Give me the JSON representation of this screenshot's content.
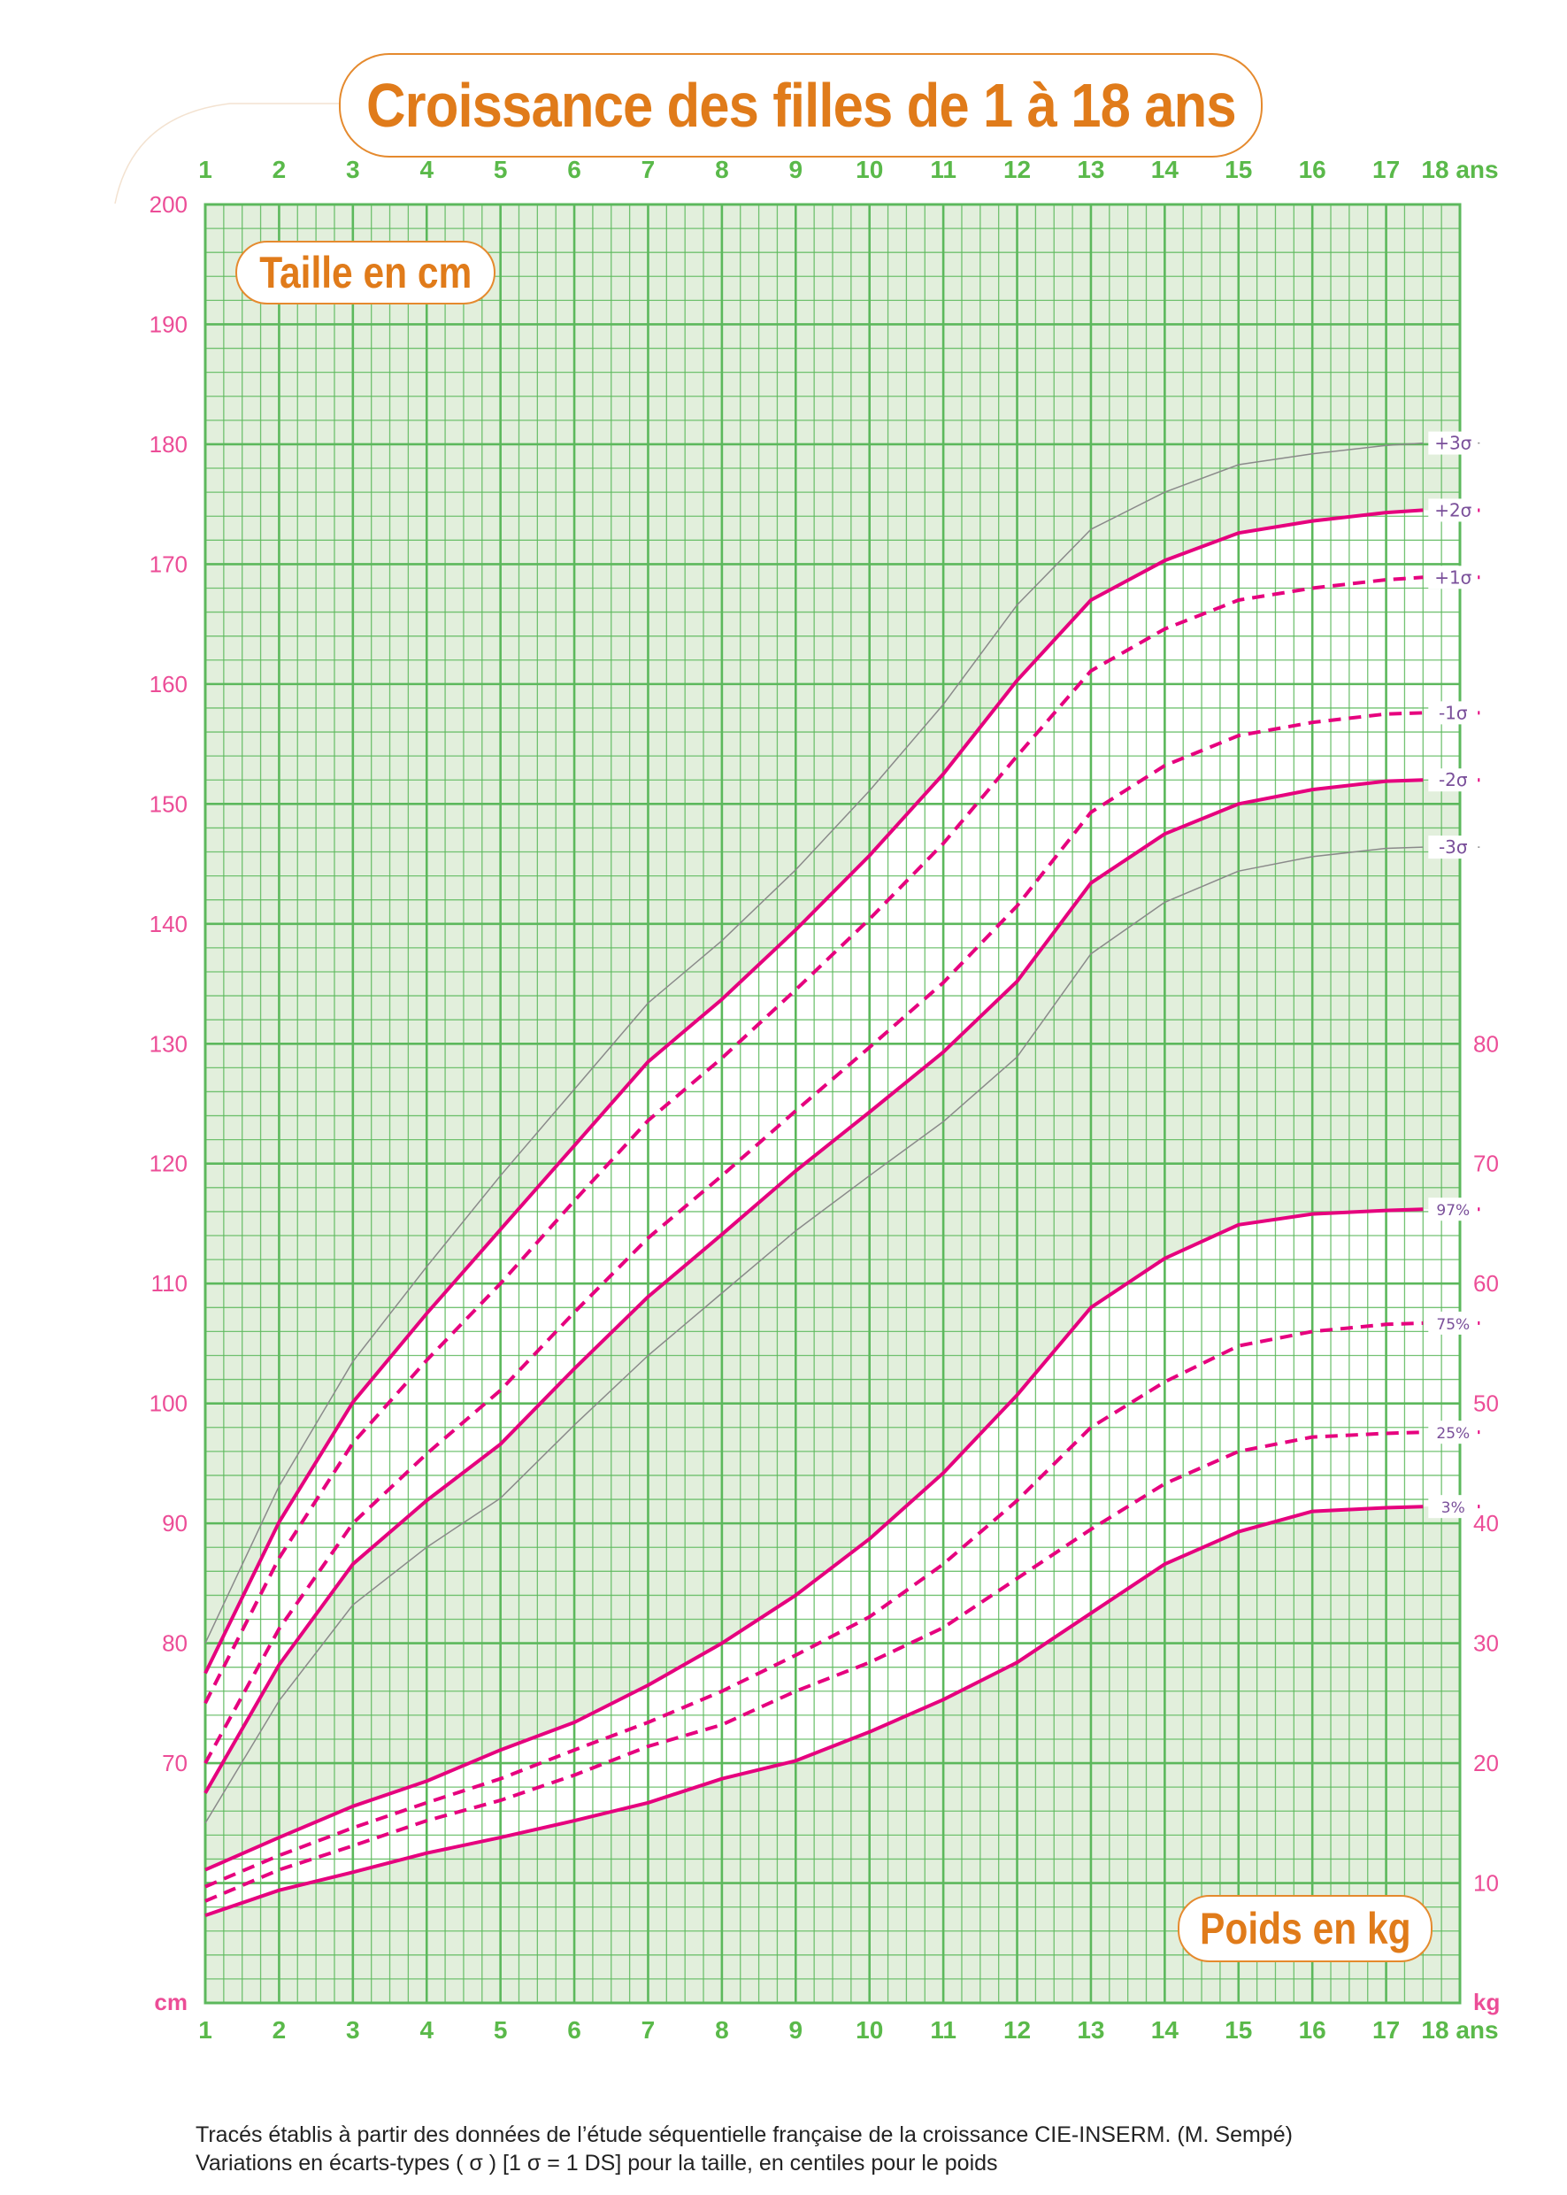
{
  "title": "Croissance des filles de 1 à 18 ans",
  "height_panel_label": "Taille en cm",
  "weight_panel_label": "Poids en kg",
  "footer": {
    "line1": "Tracés établis à partir des données de l’étude séquentielle française de la croissance CIE-INSERM. (M. Sempé)",
    "line2": "Variations en écarts-types ( σ ) [1 σ = 1 DS] pour la taille, en centiles pour le poids"
  },
  "colors": {
    "grid": "#5cb85c",
    "grid_fill": "#e2efdc",
    "band_fill": "#ffffff",
    "curve": "#e6007e",
    "outer_curve": "#8a8a8a",
    "title": "#e07b1a",
    "curve_label": "#7a4f9a",
    "left_axis": "#ec4d97",
    "age_axis": "#5ab94a"
  },
  "chart_data": {
    "type": "line",
    "title": "Croissance des filles de 1 à 18 ans",
    "x_axis": {
      "ticks": [
        "1",
        "2",
        "3",
        "4",
        "5",
        "6",
        "7",
        "8",
        "9",
        "10",
        "11",
        "12",
        "13",
        "14",
        "15",
        "16",
        "17",
        "18 ans"
      ],
      "range": [
        1,
        18
      ],
      "unit_label": "ans",
      "grid_minor": 0.25
    },
    "y_axis_left": {
      "label": "Taille en cm",
      "unit_label": "cm",
      "range": [
        50,
        200
      ],
      "ticks": [
        "70",
        "80",
        "90",
        "100",
        "110",
        "120",
        "130",
        "140",
        "150",
        "160",
        "170",
        "180",
        "190",
        "200"
      ],
      "grid_minor": 2
    },
    "y_axis_right": {
      "label": "Poids en kg",
      "unit_label": "kg",
      "range": [
        0,
        150
      ],
      "ticks": [
        "10",
        "20",
        "30",
        "40",
        "50",
        "60",
        "70",
        "80"
      ]
    },
    "grid": true,
    "ages": [
      1,
      2,
      3,
      4,
      5,
      6,
      7,
      8,
      9,
      10,
      11,
      12,
      13,
      14,
      15,
      16,
      17,
      17.5
    ],
    "height_series": [
      {
        "name": "+3σ",
        "style": "thin",
        "values": [
          80.0,
          93.1,
          103.5,
          111.4,
          119.0,
          126.2,
          133.4,
          138.6,
          144.5,
          151.1,
          158.3,
          166.6,
          172.9,
          176.0,
          178.3,
          179.2,
          179.9,
          180.1
        ]
      },
      {
        "name": "+2σ",
        "style": "solid",
        "values": [
          77.5,
          90.1,
          100.1,
          107.5,
          114.5,
          121.5,
          128.5,
          133.7,
          139.5,
          145.7,
          152.5,
          160.3,
          167.0,
          170.3,
          172.6,
          173.6,
          174.3,
          174.5
        ]
      },
      {
        "name": "+1σ",
        "style": "dashed",
        "values": [
          75.0,
          87.1,
          96.7,
          103.6,
          110.0,
          116.9,
          123.6,
          128.8,
          134.5,
          140.4,
          146.7,
          154.0,
          161.1,
          164.6,
          167.0,
          168.0,
          168.7,
          168.9
        ]
      },
      {
        "name": "-1σ",
        "style": "dashed",
        "values": [
          70.0,
          81.2,
          90.0,
          95.8,
          101.1,
          107.6,
          113.8,
          119.0,
          124.4,
          129.7,
          135.1,
          141.5,
          149.3,
          153.2,
          155.7,
          156.8,
          157.5,
          157.6
        ]
      },
      {
        "name": "-2σ",
        "style": "solid",
        "values": [
          67.5,
          78.2,
          86.6,
          91.9,
          96.6,
          102.9,
          108.9,
          114.1,
          119.4,
          124.3,
          129.3,
          135.2,
          143.4,
          147.5,
          150.0,
          151.2,
          151.9,
          152.0
        ]
      },
      {
        "name": "-3σ",
        "style": "thin",
        "values": [
          65.0,
          75.2,
          83.2,
          88.0,
          92.1,
          98.2,
          104.0,
          109.2,
          114.4,
          119.0,
          123.5,
          128.9,
          137.5,
          141.8,
          144.4,
          145.6,
          146.3,
          146.4
        ]
      }
    ],
    "weight_series": [
      {
        "name": "97%",
        "style": "solid",
        "values": [
          11.1,
          13.8,
          16.4,
          18.5,
          21.1,
          23.4,
          26.5,
          30.0,
          34.0,
          38.7,
          44.2,
          50.7,
          58.0,
          62.1,
          64.9,
          65.8,
          66.1,
          66.2
        ]
      },
      {
        "name": "75%",
        "style": "dashed",
        "values": [
          9.7,
          12.3,
          14.6,
          16.7,
          18.7,
          21.1,
          23.4,
          26.0,
          29.0,
          32.2,
          36.6,
          41.9,
          48.0,
          51.8,
          54.8,
          56.0,
          56.6,
          56.7
        ]
      },
      {
        "name": "25%",
        "style": "dashed",
        "values": [
          8.5,
          11.1,
          13.1,
          15.2,
          16.9,
          19.0,
          21.4,
          23.2,
          26.0,
          28.4,
          31.3,
          35.4,
          39.5,
          43.3,
          46.0,
          47.2,
          47.5,
          47.6
        ]
      },
      {
        "name": "3%",
        "style": "solid",
        "values": [
          7.3,
          9.4,
          10.9,
          12.5,
          13.8,
          15.2,
          16.7,
          18.7,
          20.2,
          22.6,
          25.3,
          28.4,
          32.5,
          36.6,
          39.3,
          41.0,
          41.3,
          41.4
        ]
      }
    ]
  }
}
